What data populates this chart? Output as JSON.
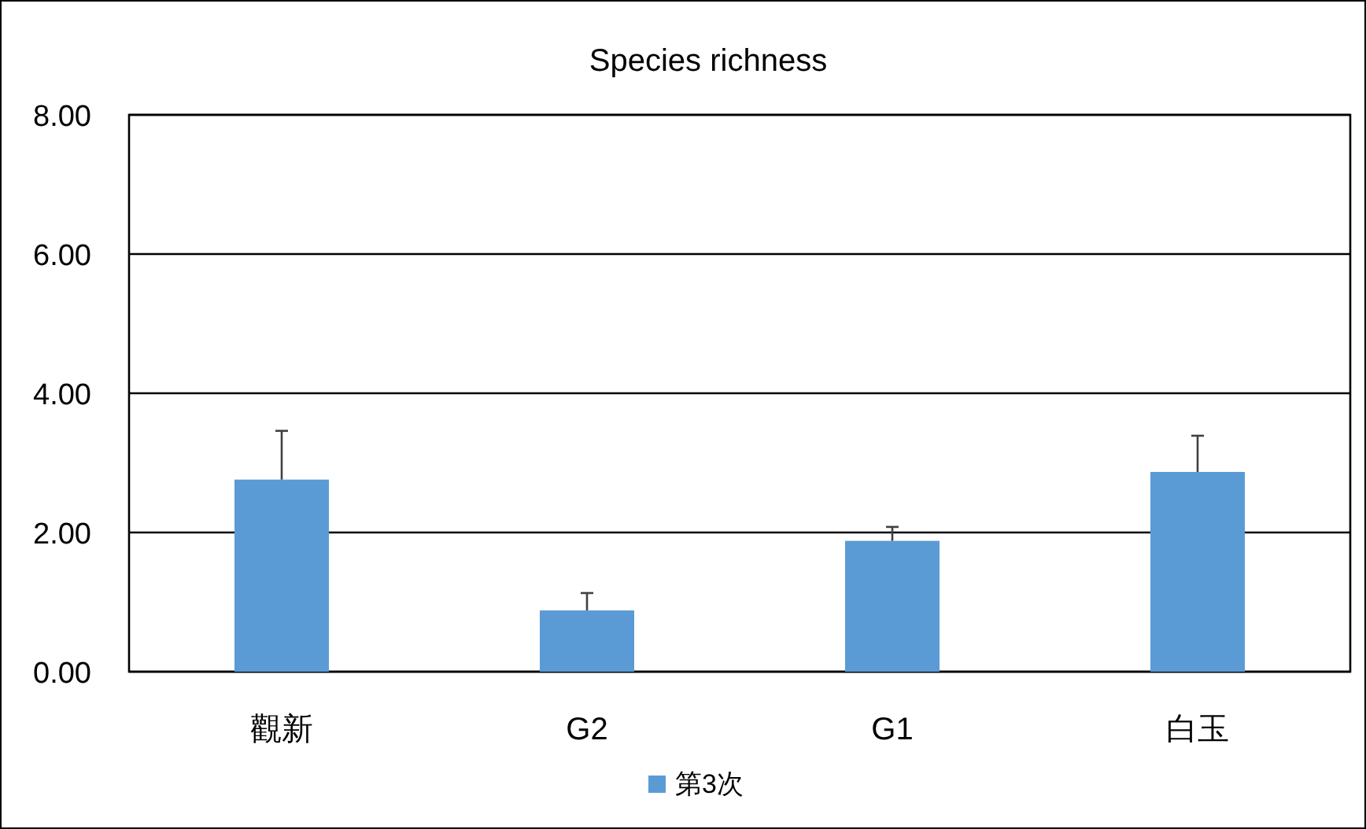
{
  "chart_data": {
    "type": "bar",
    "title": "Species richness",
    "categories": [
      "觀新",
      "G2",
      "G1",
      "白玉"
    ],
    "series": [
      {
        "name": "第3次",
        "color": "#5b9bd5",
        "values": [
          2.76,
          0.88,
          1.88,
          2.87
        ],
        "errors": [
          [
            2.76,
            3.46
          ],
          [
            0.88,
            1.13
          ],
          [
            1.88,
            2.08
          ],
          [
            2.87,
            3.39
          ]
        ]
      }
    ],
    "ylim": [
      0,
      8
    ],
    "yticks": [
      {
        "value": 0,
        "label": "0.00"
      },
      {
        "value": 2,
        "label": "2.00"
      },
      {
        "value": 4,
        "label": "4.00"
      },
      {
        "value": 6,
        "label": "6.00"
      },
      {
        "value": 8,
        "label": "8.00"
      }
    ],
    "grid": "y",
    "legend": "bottom"
  }
}
